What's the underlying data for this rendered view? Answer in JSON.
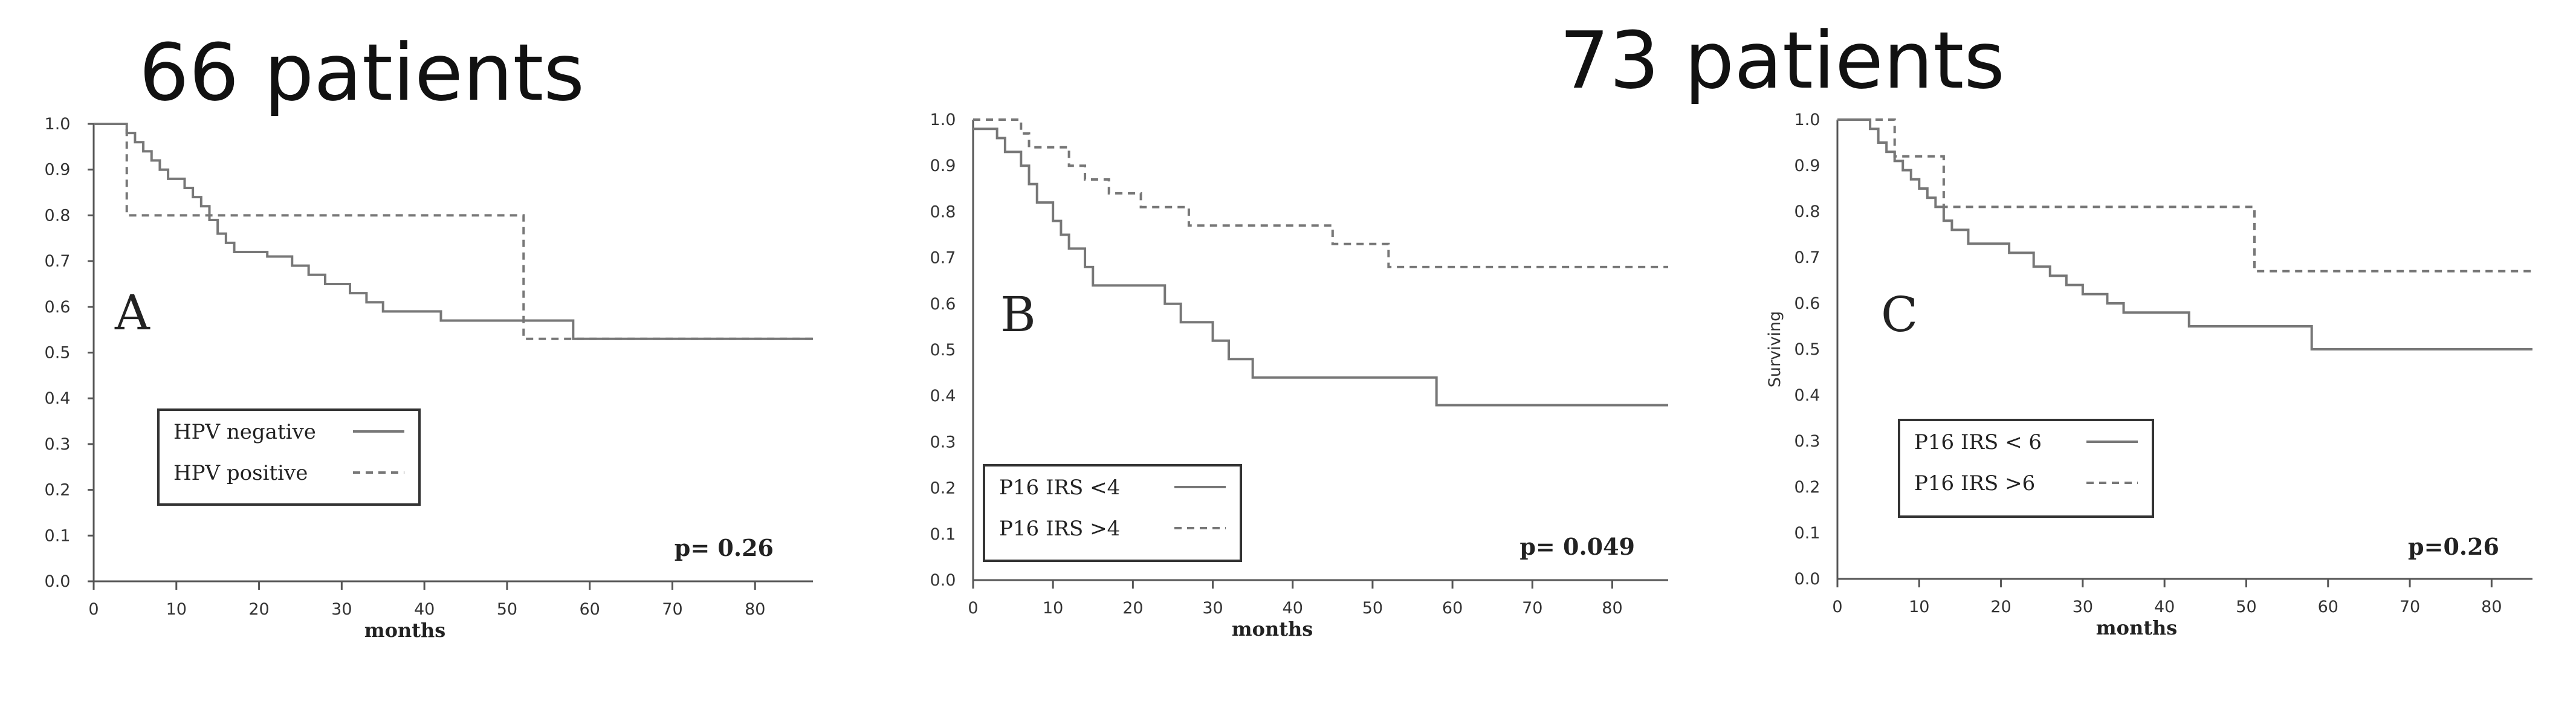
{
  "titles": {
    "left": "66 patients",
    "right": "73 patients"
  },
  "chart_data": [
    {
      "type": "line",
      "panel_label": "A",
      "title": "",
      "xlabel": "months",
      "ylabel": "",
      "xlim": [
        0,
        87
      ],
      "ylim": [
        0,
        1
      ],
      "xticks": [
        "0",
        "10",
        "20",
        "30",
        "40",
        "50",
        "60",
        "70",
        "80"
      ],
      "yticks": [
        "0.0",
        "0.1",
        "0.2",
        "0.3",
        "0.4",
        "0.5",
        "0.6",
        "0.7",
        "0.8",
        "0.9",
        "1.0"
      ],
      "pvalue": "p= 0.26",
      "series": [
        {
          "name": "HPV negative",
          "style": "solid",
          "steps": [
            [
              0,
              1.0
            ],
            [
              4,
              0.98
            ],
            [
              5,
              0.96
            ],
            [
              6,
              0.94
            ],
            [
              7,
              0.92
            ],
            [
              8,
              0.9
            ],
            [
              9,
              0.88
            ],
            [
              11,
              0.86
            ],
            [
              12,
              0.84
            ],
            [
              13,
              0.82
            ],
            [
              14,
              0.79
            ],
            [
              15,
              0.76
            ],
            [
              16,
              0.74
            ],
            [
              17,
              0.72
            ],
            [
              21,
              0.71
            ],
            [
              24,
              0.69
            ],
            [
              26,
              0.67
            ],
            [
              28,
              0.65
            ],
            [
              31,
              0.63
            ],
            [
              33,
              0.61
            ],
            [
              35,
              0.59
            ],
            [
              42,
              0.57
            ],
            [
              58,
              0.53
            ],
            [
              87,
              0.53
            ]
          ]
        },
        {
          "name": "HPV positive",
          "style": "dashed",
          "steps": [
            [
              0,
              1.0
            ],
            [
              4,
              0.8
            ],
            [
              52,
              0.53
            ],
            [
              87,
              0.53
            ]
          ]
        }
      ]
    },
    {
      "type": "line",
      "panel_label": "B",
      "title": "",
      "xlabel": "months",
      "ylabel": "",
      "xlim": [
        0,
        87
      ],
      "ylim": [
        0,
        1
      ],
      "xticks": [
        "0",
        "10",
        "20",
        "30",
        "40",
        "50",
        "60",
        "70",
        "80"
      ],
      "yticks": [
        "0.0",
        "0.1",
        "0.2",
        "0.3",
        "0.4",
        "0.5",
        "0.6",
        "0.7",
        "0.8",
        "0.9",
        "1.0"
      ],
      "pvalue": "p= 0.049",
      "series": [
        {
          "name": "P16 IRS <4",
          "style": "solid",
          "steps": [
            [
              0,
              0.98
            ],
            [
              3,
              0.96
            ],
            [
              4,
              0.93
            ],
            [
              6,
              0.9
            ],
            [
              7,
              0.86
            ],
            [
              8,
              0.82
            ],
            [
              10,
              0.78
            ],
            [
              11,
              0.75
            ],
            [
              12,
              0.72
            ],
            [
              14,
              0.68
            ],
            [
              15,
              0.64
            ],
            [
              24,
              0.6
            ],
            [
              26,
              0.56
            ],
            [
              30,
              0.52
            ],
            [
              32,
              0.48
            ],
            [
              35,
              0.44
            ],
            [
              58,
              0.38
            ],
            [
              87,
              0.38
            ]
          ]
        },
        {
          "name": "P16 IRS >4",
          "style": "dashed",
          "steps": [
            [
              0,
              1.0
            ],
            [
              6,
              0.97
            ],
            [
              7,
              0.94
            ],
            [
              12,
              0.9
            ],
            [
              14,
              0.87
            ],
            [
              17,
              0.84
            ],
            [
              21,
              0.81
            ],
            [
              27,
              0.77
            ],
            [
              45,
              0.73
            ],
            [
              52,
              0.68
            ],
            [
              87,
              0.68
            ]
          ]
        }
      ]
    },
    {
      "type": "line",
      "panel_label": "C",
      "title": "",
      "xlabel": "months",
      "ylabel": "Surviving",
      "xlim": [
        0,
        85
      ],
      "ylim": [
        0,
        1
      ],
      "xticks": [
        "0",
        "10",
        "20",
        "30",
        "40",
        "50",
        "60",
        "70",
        "80"
      ],
      "yticks": [
        "0.0",
        "0.1",
        "0.2",
        "0.3",
        "0.4",
        "0.5",
        "0.6",
        "0.7",
        "0.8",
        "0.9",
        "1.0"
      ],
      "pvalue": "p=0.26",
      "series": [
        {
          "name": "P16 IRS < 6",
          "style": "solid",
          "steps": [
            [
              0,
              1.0
            ],
            [
              4,
              0.98
            ],
            [
              5,
              0.95
            ],
            [
              6,
              0.93
            ],
            [
              7,
              0.91
            ],
            [
              8,
              0.89
            ],
            [
              9,
              0.87
            ],
            [
              10,
              0.85
            ],
            [
              11,
              0.83
            ],
            [
              12,
              0.81
            ],
            [
              13,
              0.78
            ],
            [
              14,
              0.76
            ],
            [
              16,
              0.73
            ],
            [
              21,
              0.71
            ],
            [
              24,
              0.68
            ],
            [
              26,
              0.66
            ],
            [
              28,
              0.64
            ],
            [
              30,
              0.62
            ],
            [
              33,
              0.6
            ],
            [
              35,
              0.58
            ],
            [
              43,
              0.55
            ],
            [
              58,
              0.5
            ],
            [
              85,
              0.5
            ]
          ]
        },
        {
          "name": "P16 IRS >6",
          "style": "dashed",
          "steps": [
            [
              0,
              1.0
            ],
            [
              7,
              0.92
            ],
            [
              13,
              0.81
            ],
            [
              51,
              0.67
            ],
            [
              85,
              0.67
            ]
          ]
        }
      ]
    }
  ],
  "colors": {
    "line": "#777777",
    "axis": "#555555",
    "text": "#222222"
  }
}
